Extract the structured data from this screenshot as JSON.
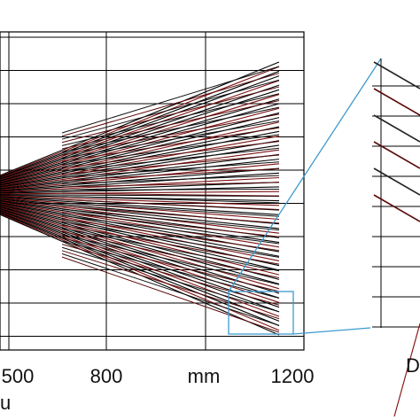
{
  "x_axis": {
    "tick_labels": [
      "500",
      "800",
      "1200"
    ],
    "unit": "mm",
    "label_fragment": "u"
  },
  "inset": {
    "label_fragment": "D"
  }
}
